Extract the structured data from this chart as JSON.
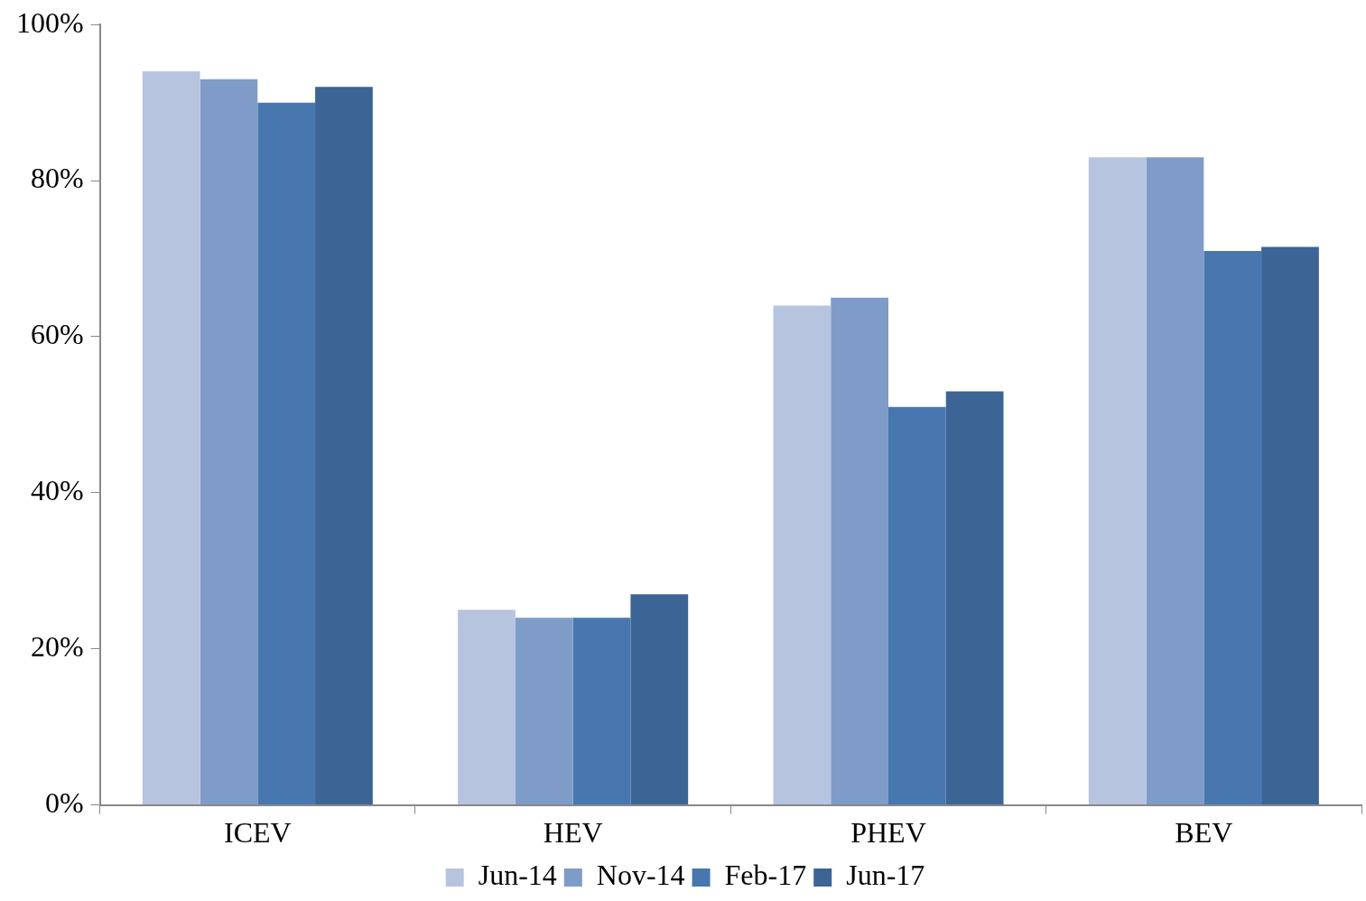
{
  "chart_data": {
    "type": "bar",
    "categories": [
      "ICEV",
      "HEV",
      "PHEV",
      "BEV"
    ],
    "series": [
      {
        "name": "Jun-14",
        "color": "#b7c4df",
        "values": [
          94,
          25,
          64,
          83
        ]
      },
      {
        "name": "Nov-14",
        "color": "#7f9cc8",
        "values": [
          93,
          24,
          65,
          83
        ]
      },
      {
        "name": "Feb-17",
        "color": "#4877b0",
        "values": [
          90,
          24,
          51,
          71
        ]
      },
      {
        "name": "Jun-17",
        "color": "#3c6494",
        "values": [
          92,
          27,
          53,
          71.5
        ]
      }
    ],
    "ylim": [
      0,
      100
    ],
    "yticks": [
      {
        "value": 0,
        "label": "0%"
      },
      {
        "value": 20,
        "label": "20%"
      },
      {
        "value": 40,
        "label": "40%"
      },
      {
        "value": 60,
        "label": "60%"
      },
      {
        "value": 80,
        "label": "80%"
      },
      {
        "value": 100,
        "label": "100%"
      }
    ],
    "grid": false,
    "legend": "bottom"
  }
}
